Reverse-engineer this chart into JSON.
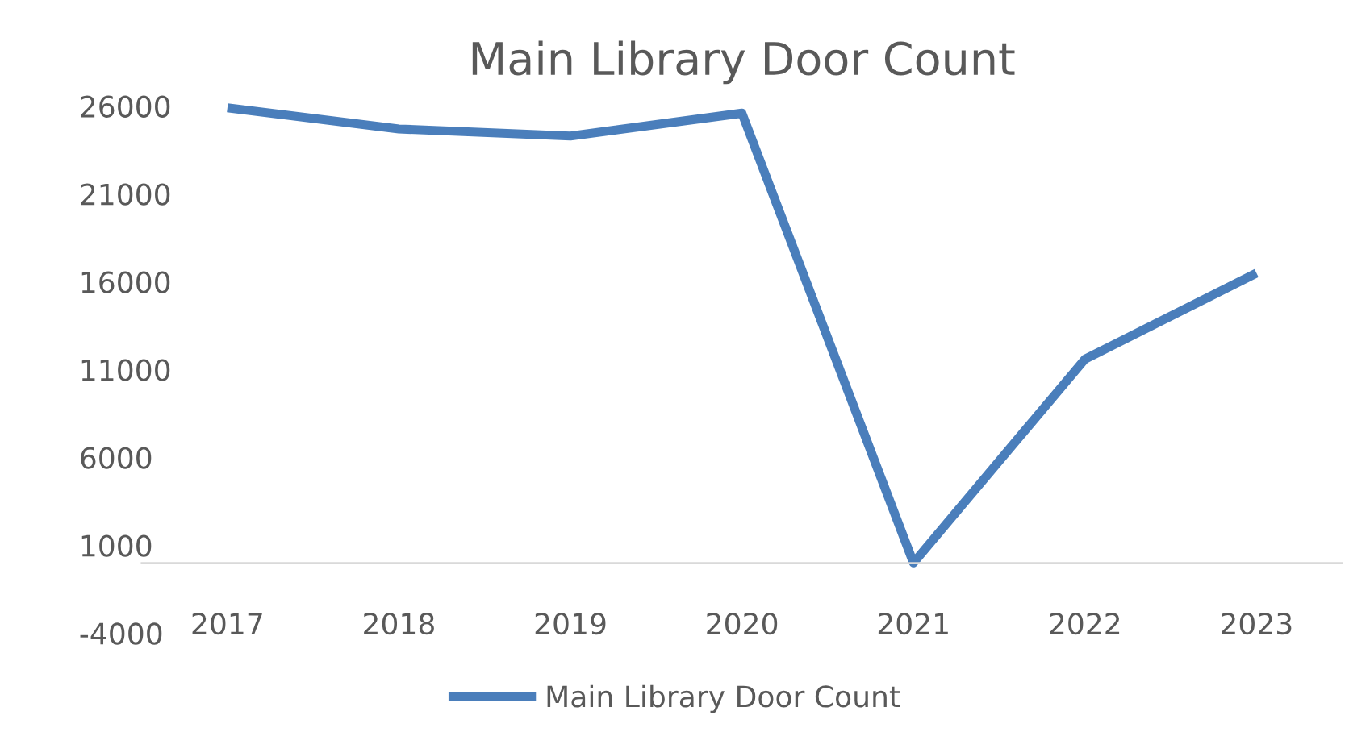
{
  "chart_data": {
    "type": "line",
    "title": "Main Library Door Count",
    "categories": [
      "2017",
      "2018",
      "2019",
      "2020",
      "2021",
      "2022",
      "2023"
    ],
    "series": [
      {
        "name": "Main Library Door Count",
        "color": "#4a7ebb",
        "values": [
          25900,
          24700,
          24300,
          25600,
          0,
          11600,
          16500
        ]
      }
    ],
    "ylim": [
      -4000,
      26000
    ],
    "yticks": [
      -4000,
      1000,
      6000,
      11000,
      16000,
      21000,
      26000
    ],
    "grid": false,
    "legend": "bottom",
    "marker": "none",
    "line_style": "solid"
  }
}
